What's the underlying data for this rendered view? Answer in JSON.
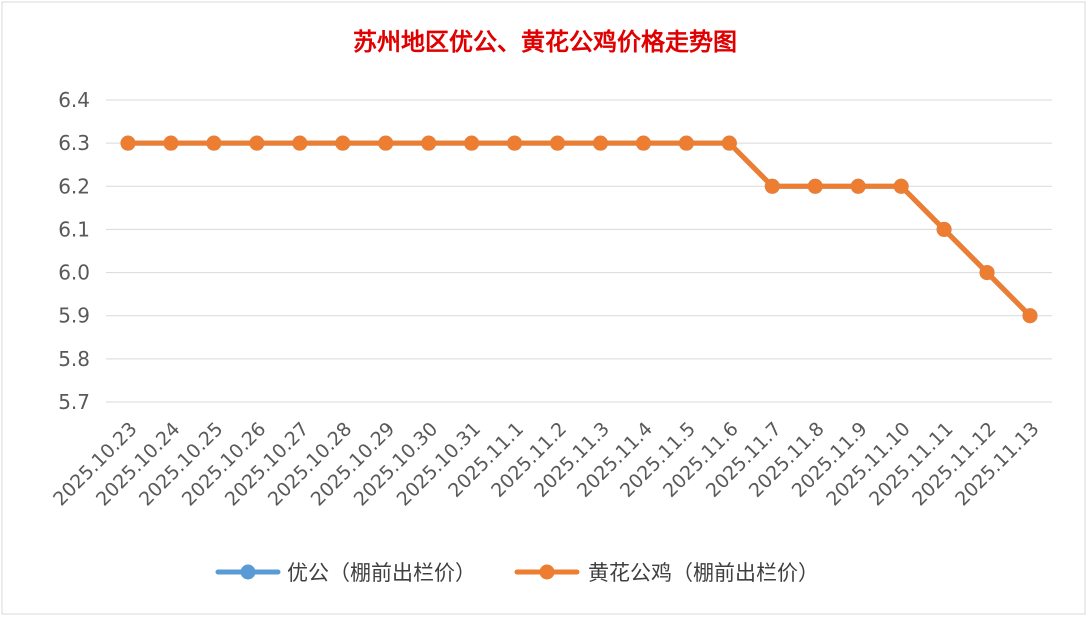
{
  "chart_data": {
    "type": "line",
    "title": "苏州地区优公、黄花公鸡价格走势图",
    "categories": [
      "2025.10.23",
      "2025.10.24",
      "2025.10.25",
      "2025.10.26",
      "2025.10.27",
      "2025.10.28",
      "2025.10.29",
      "2025.10.30",
      "2025.10.31",
      "2025.11.1",
      "2025.11.2",
      "2025.11.3",
      "2025.11.4",
      "2025.11.5",
      "2025.11.6",
      "2025.11.7",
      "2025.11.8",
      "2025.11.9",
      "2025.11.10",
      "2025.11.11",
      "2025.11.12",
      "2025.11.13"
    ],
    "ylim": [
      5.7,
      6.4
    ],
    "yticks": [
      "6.4",
      "6.3",
      "6.2",
      "6.1",
      "6.0",
      "5.9",
      "5.8",
      "5.7"
    ],
    "grid": true,
    "legend_position": "bottom",
    "series": [
      {
        "name": "优公（棚前出栏价）",
        "color": "#5b9bd5",
        "values": [
          6.3,
          6.3,
          6.3,
          6.3,
          6.3,
          6.3,
          6.3,
          6.3,
          6.3,
          6.3,
          6.3,
          6.3,
          6.3,
          6.3,
          6.3,
          6.2,
          6.2,
          6.2,
          6.2,
          6.1,
          6.0,
          5.9
        ]
      },
      {
        "name": "黄花公鸡（棚前出栏价）",
        "color": "#ed7d31",
        "values": [
          6.3,
          6.3,
          6.3,
          6.3,
          6.3,
          6.3,
          6.3,
          6.3,
          6.3,
          6.3,
          6.3,
          6.3,
          6.3,
          6.3,
          6.3,
          6.2,
          6.2,
          6.2,
          6.2,
          6.1,
          6.0,
          5.9
        ]
      }
    ]
  }
}
